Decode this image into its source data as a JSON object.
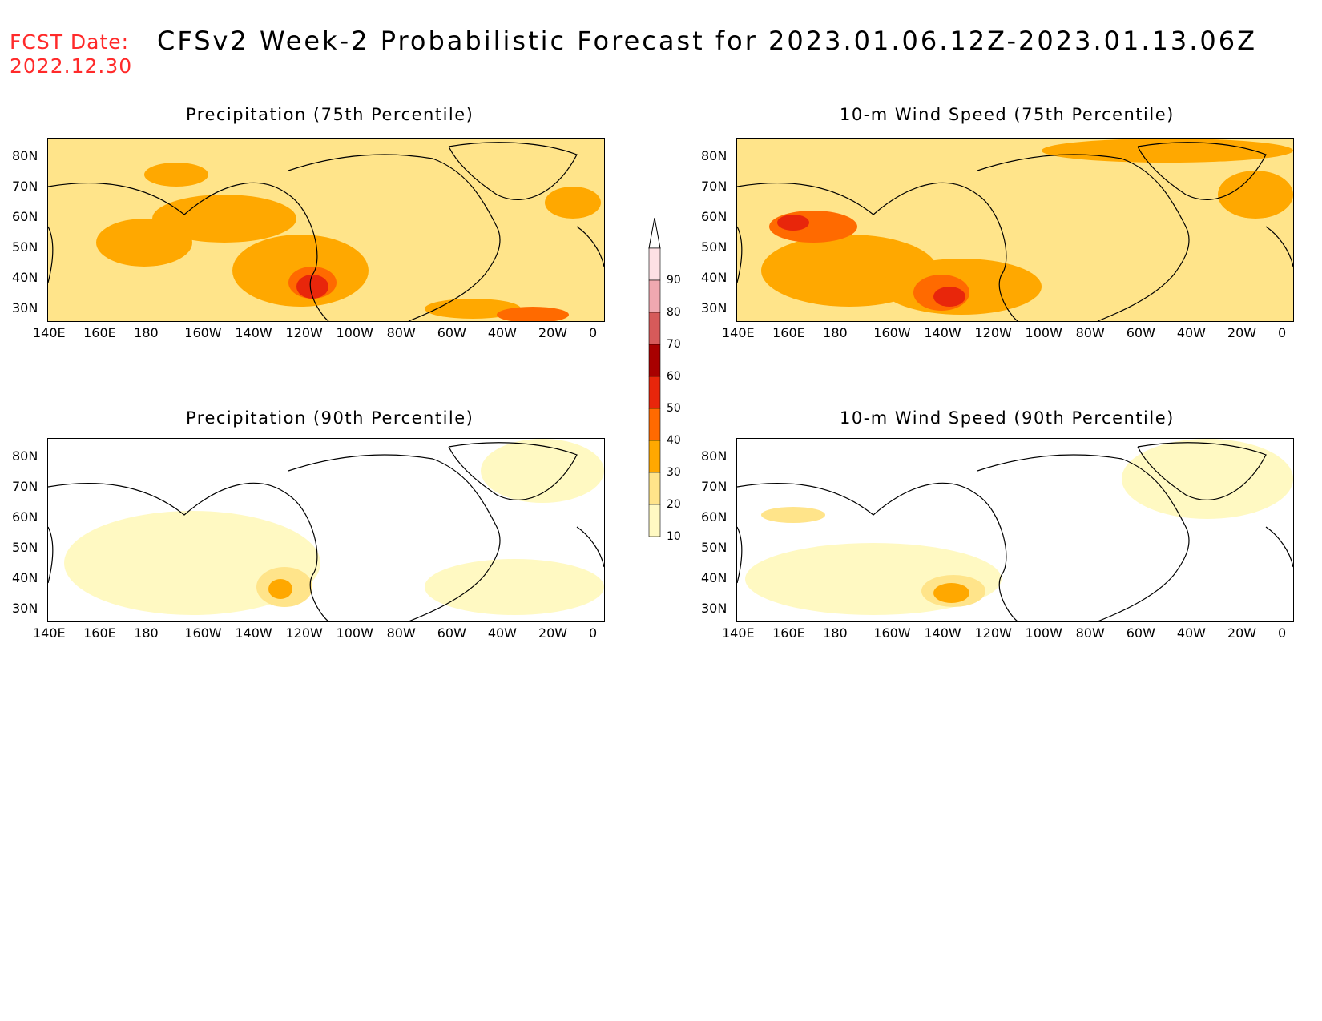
{
  "header": {
    "fcst_label": "FCST Date:",
    "fcst_date": "2022.12.30",
    "title": "CFSv2 Week-2 Probabilistic Forecast for 2023.01.06.12Z-2023.01.13.06Z"
  },
  "panels": [
    {
      "title": "Precipitation (75th Percentile)",
      "intensity": "high-precip"
    },
    {
      "title": "10-m Wind Speed (75th Percentile)",
      "intensity": "high-wind"
    },
    {
      "title": "Precipitation (90th Percentile)",
      "intensity": "low-precip"
    },
    {
      "title": "10-m Wind Speed (90th Percentile)",
      "intensity": "low-wind"
    }
  ],
  "axes": {
    "lat_labels": [
      "80N",
      "70N",
      "60N",
      "50N",
      "40N",
      "30N"
    ],
    "lon_labels": [
      "140E",
      "160E",
      "180",
      "160W",
      "140W",
      "120W",
      "100W",
      "80W",
      "60W",
      "40W",
      "20W",
      "0"
    ]
  },
  "colorbar": {
    "levels": [
      "10",
      "20",
      "30",
      "40",
      "50",
      "60",
      "70",
      "80",
      "90"
    ],
    "colors": [
      "#fff9c2",
      "#ffe48a",
      "#ffa800",
      "#ff6a00",
      "#e8260b",
      "#a80000",
      "#d65a5a",
      "#f0a8b0",
      "#fde0e4"
    ]
  }
}
